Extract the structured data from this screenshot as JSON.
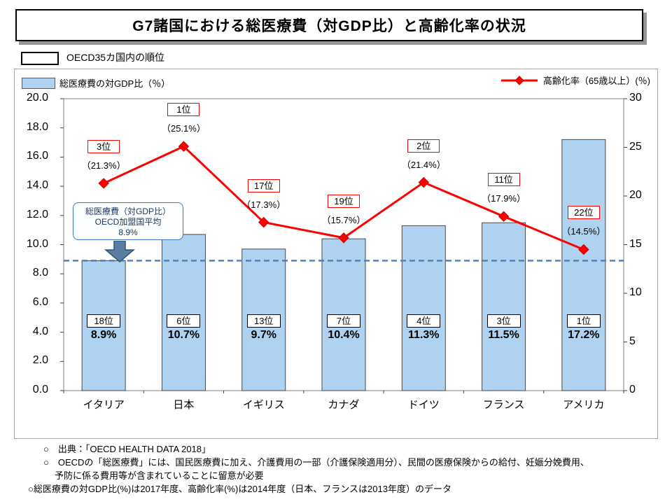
{
  "slide": {
    "title": "G7諸国における総医療費（対GDP比）と高齢化率の状況",
    "rank_box_legend": "OECD35カ国内の順位"
  },
  "legend": {
    "bar_label": "総医療費の対GDP比（％）",
    "line_label": "高齢化率（65歳以上）(％)"
  },
  "oecd_average_callout": {
    "line1": "総医療費（対GDP比）",
    "line2": "OECD加盟国平均",
    "line3": "8.9%"
  },
  "chart_data": {
    "type": "bar+line combo",
    "title": "G7諸国における総医療費（対GDP比）と高齢化率の状況",
    "categories": [
      "イタリア",
      "日本",
      "イギリス",
      "カナダ",
      "ドイツ",
      "フランス",
      "アメリカ"
    ],
    "series": [
      {
        "name": "総医療費の対GDP比（％）",
        "type": "bar",
        "axis": "left",
        "values": [
          8.9,
          10.7,
          9.7,
          10.4,
          11.3,
          11.5,
          17.2
        ],
        "ranks": [
          "18位",
          "6位",
          "13位",
          "7位",
          "4位",
          "3位",
          "1位"
        ],
        "value_labels": [
          "8.9%",
          "10.7%",
          "9.7%",
          "10.4%",
          "11.3%",
          "11.5%",
          "17.2%"
        ]
      },
      {
        "name": "高齢化率（65歳以上）(％)",
        "type": "line",
        "axis": "right",
        "values": [
          21.3,
          25.1,
          17.3,
          15.7,
          21.4,
          17.9,
          14.5
        ],
        "ranks": [
          "3位",
          "1位",
          "17位",
          "19位",
          "2位",
          "11位",
          "22位"
        ],
        "value_labels": [
          "（21.3%）",
          "（25.1%）",
          "（17.3%）",
          "（15.7%）",
          "（21.4%）",
          "（17.9%）",
          "（14.5%）"
        ]
      }
    ],
    "left_axis": {
      "min": 0,
      "max": 20,
      "ticks": [
        "0.0",
        "2.0",
        "4.0",
        "6.0",
        "8.0",
        "10.0",
        "12.0",
        "14.0",
        "16.0",
        "18.0",
        "20.0"
      ]
    },
    "right_axis": {
      "min": 0,
      "max": 30,
      "ticks": [
        "0",
        "5",
        "10",
        "15",
        "20",
        "25",
        "30"
      ]
    },
    "average_line": {
      "value": 8.9,
      "label": "OECD加盟国平均 8.9%"
    },
    "grid": false,
    "legend_position": "top"
  },
  "footnotes": [
    "○　出典：「OECD HEALTH DATA 2018」",
    "○　OECDの「総医療費」には、国民医療費に加え、介護費用の一部（介護保険適用分）、民間の医療保険からの給付、妊娠分娩費用、",
    "予防に係る費用等が含まれていることに留意が必要",
    "○総医療費の対GDP比(%)は2017年度、高齢化率(%)は2014年度（日本、フランスは2013年度）のデータ"
  ],
  "colors": {
    "bar_fill": "#AFD2F0",
    "bar_border": "#4a4a4a",
    "line": "#FF0000",
    "line_marker_border": "#C00000",
    "avg_line": "#4F81BD",
    "rank_box_line_border": "#FF0000",
    "callout_border": "#4472C4",
    "arrow_fill": "#5B7DA1",
    "arrow_border": "#2F5578"
  }
}
